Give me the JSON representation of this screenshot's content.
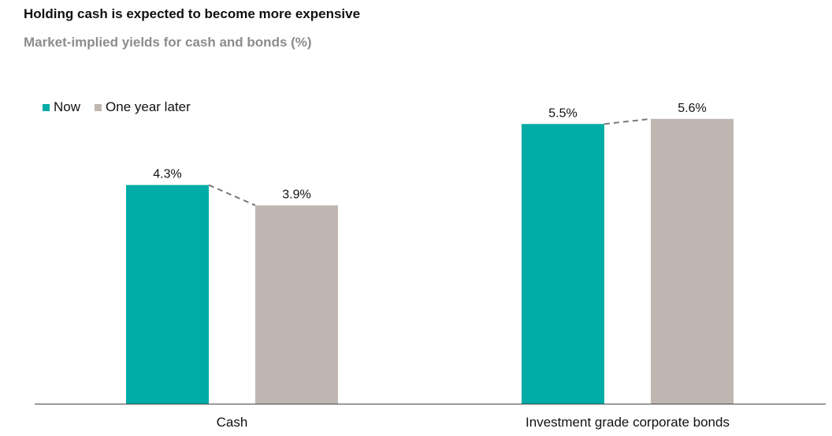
{
  "chart_data": {
    "type": "bar",
    "title": "Holding cash is expected to become more expensive",
    "subtitle": "Market-implied yields for cash and bonds (%)",
    "categories": [
      "Cash",
      "Investment grade corporate bonds"
    ],
    "series": [
      {
        "name": "Now",
        "values": [
          4.3,
          5.5
        ],
        "labels": [
          "4.3%",
          "5.5%"
        ],
        "color": "#00aca6"
      },
      {
        "name": "One year later",
        "values": [
          3.9,
          5.6
        ],
        "labels": [
          "3.9%",
          "5.6%"
        ],
        "color": "#bfb6b2"
      }
    ],
    "ylim": [
      0,
      6.5
    ],
    "connector": {
      "style": "dashed",
      "color": "#7a7a7a"
    },
    "grid": false,
    "legend": "top-left",
    "xlabel": "",
    "ylabel": ""
  }
}
